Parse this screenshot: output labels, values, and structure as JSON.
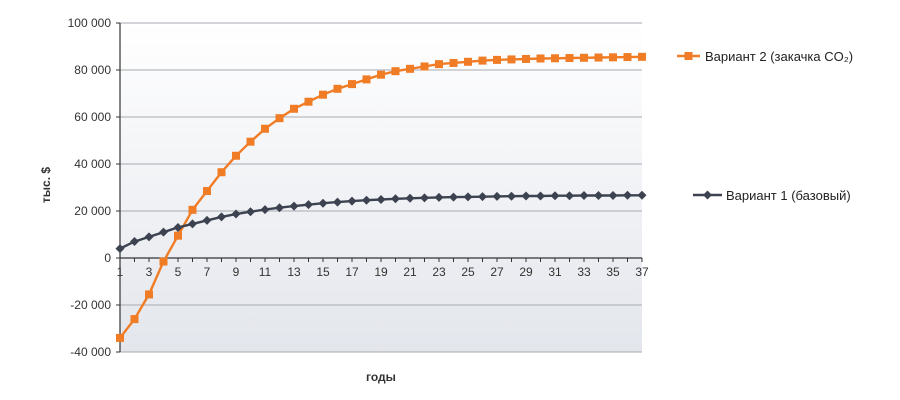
{
  "chart_data": {
    "type": "line",
    "xlabel": "годы",
    "ylabel": "тыс. $",
    "xlim": [
      1,
      37
    ],
    "ylim": [
      -40000,
      100000
    ],
    "y_ticks": [
      100000,
      80000,
      60000,
      40000,
      20000,
      0,
      -20000,
      -40000
    ],
    "y_tick_labels": [
      "100 000",
      "80 000",
      "60 000",
      "40 000",
      "20 000",
      "0",
      "-20 000",
      "-40 000"
    ],
    "x_tick_labels": [
      "1",
      "3",
      "5",
      "7",
      "9",
      "11",
      "13",
      "15",
      "17",
      "19",
      "21",
      "23",
      "25",
      "27",
      "29",
      "31",
      "33",
      "35",
      "37"
    ],
    "grid": true,
    "legend_position": "right",
    "colors": {
      "plot_bg_top": "#ffffff",
      "plot_bg_bottom": "#e3e6ec",
      "grid": "#a8aab0",
      "axis": "#333333"
    },
    "x": [
      1,
      2,
      3,
      4,
      5,
      6,
      7,
      8,
      9,
      10,
      11,
      12,
      13,
      14,
      15,
      16,
      17,
      18,
      19,
      20,
      21,
      22,
      23,
      24,
      25,
      26,
      27,
      28,
      29,
      30,
      31,
      32,
      33,
      34,
      35,
      36,
      37
    ],
    "series": [
      {
        "name": "Вариант 2 (закачка CO₂)",
        "color": "#f07c26",
        "marker": "square",
        "values": [
          -34000,
          -26000,
          -15500,
          -1500,
          9500,
          20500,
          28500,
          36500,
          43500,
          49500,
          55000,
          59500,
          63500,
          66500,
          69500,
          72000,
          74000,
          76000,
          78000,
          79500,
          80500,
          81500,
          82500,
          83000,
          83500,
          84000,
          84300,
          84500,
          84700,
          84900,
          85000,
          85100,
          85200,
          85300,
          85400,
          85500,
          85600
        ]
      },
      {
        "name": "Вариант 1 (базовый)",
        "color": "#3c4250",
        "marker": "diamond",
        "values": [
          4000,
          7000,
          9000,
          11000,
          13000,
          14500,
          16000,
          17500,
          18700,
          19700,
          20600,
          21400,
          22100,
          22700,
          23300,
          23800,
          24200,
          24600,
          24900,
          25200,
          25400,
          25600,
          25800,
          25900,
          26000,
          26100,
          26200,
          26300,
          26400,
          26400,
          26500,
          26500,
          26600,
          26600,
          26600,
          26700,
          26700
        ]
      }
    ]
  }
}
